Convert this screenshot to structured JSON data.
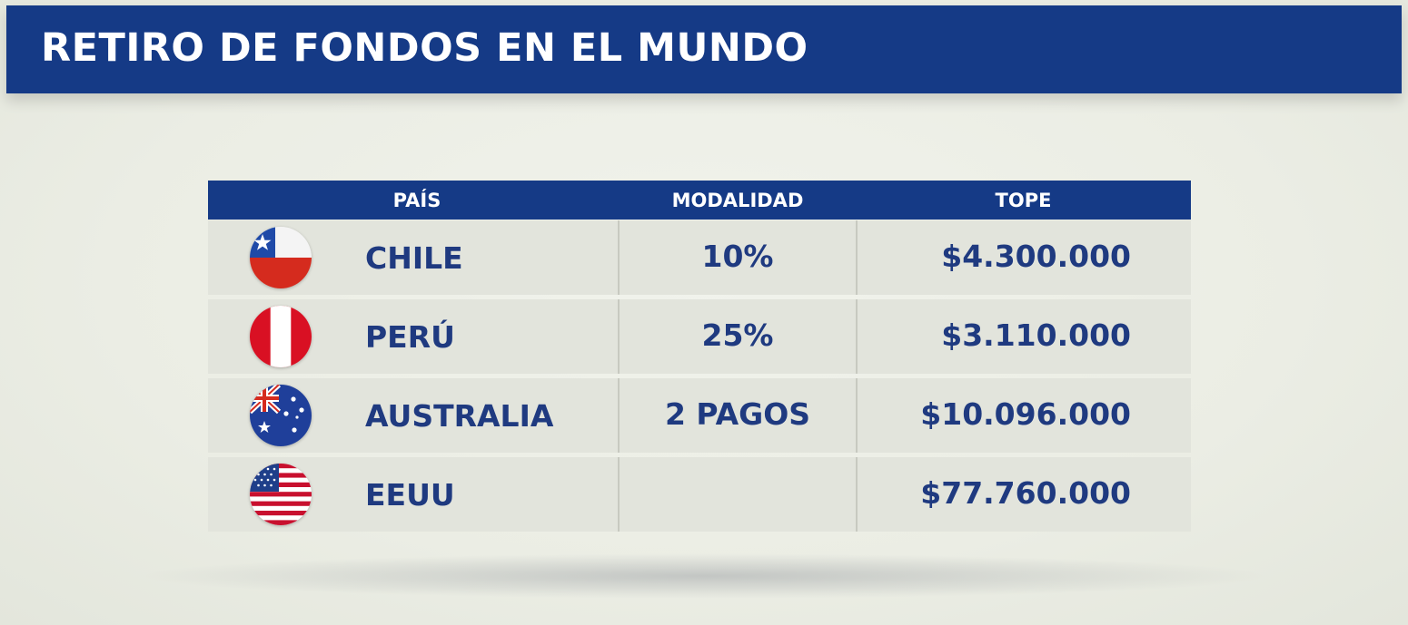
{
  "title": "RETIRO DE FONDOS EN EL MUNDO",
  "chart_data": {
    "type": "table",
    "columns": [
      "PAÍS",
      "MODALIDAD",
      "TOPE"
    ],
    "rows": [
      {
        "country": "CHILE",
        "flag": "chile-flag-icon",
        "modalidad": "10%",
        "tope": "$4.300.000"
      },
      {
        "country": "PERÚ",
        "flag": "peru-flag-icon",
        "modalidad": "25%",
        "tope": "$3.110.000"
      },
      {
        "country": "AUSTRALIA",
        "flag": "australia-flag-icon",
        "modalidad": "2 PAGOS",
        "tope": "$10.096.000"
      },
      {
        "country": "EEUU",
        "flag": "usa-flag-icon",
        "modalidad": "",
        "tope": "$77.760.000"
      }
    ]
  },
  "colors": {
    "header_blue": "#153a86",
    "text_blue": "#1f3a80",
    "row_bg": "#e2e4dc",
    "background": "#eef0e8"
  }
}
